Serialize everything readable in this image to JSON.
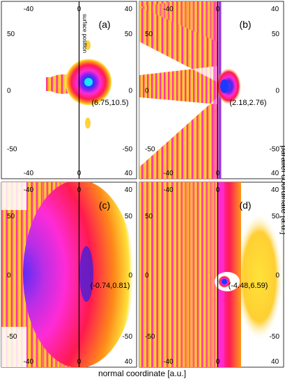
{
  "panels": [
    {
      "label": "(a)",
      "coord": "(6.75,10.5)",
      "top_ticks": [
        "-40",
        "0",
        "40"
      ],
      "bottom_ticks": [
        "-40",
        "0",
        "40"
      ],
      "left_ticks": [
        "50",
        "0",
        "-50"
      ],
      "right_ticks": [
        "50",
        "0",
        "-50"
      ],
      "surface_text": "surface position"
    },
    {
      "label": "(b)",
      "coord": "(2.18,2.76)",
      "top_ticks": [
        "-40",
        "0",
        "40"
      ],
      "bottom_ticks": [
        "-40",
        "0",
        "40"
      ],
      "left_ticks": [
        "50",
        "0",
        "-50"
      ],
      "right_ticks": [
        "50",
        "0",
        "-50"
      ]
    },
    {
      "label": "(c)",
      "coord": "(-0.74,0.81)",
      "top_ticks": [
        "-40",
        "0",
        "40"
      ],
      "bottom_ticks": [
        "-40",
        "0",
        "40"
      ],
      "left_ticks": [
        "50",
        "0",
        "-50"
      ],
      "right_ticks": [
        "50",
        "0",
        "-50"
      ]
    },
    {
      "label": "(d)",
      "coord": "(-4.48,6.59)",
      "top_ticks": [
        "-40",
        "0",
        "40"
      ],
      "bottom_ticks": [
        "-40",
        "0",
        "40"
      ],
      "left_ticks": [
        "50",
        "0",
        "-50"
      ],
      "right_ticks": [
        "50",
        "0",
        "-50"
      ]
    }
  ],
  "xlabel": "normal coordinate [a.u.]",
  "ylabel": "parallel coordinate [a.u.]",
  "colors": {
    "low": "#ffffff",
    "yellow": "#ffe23a",
    "orange": "#ff8c1a",
    "red": "#e8104a",
    "magenta": "#ff2bd6",
    "blue": "#3a1ee0",
    "cyan": "#16e6ff"
  }
}
